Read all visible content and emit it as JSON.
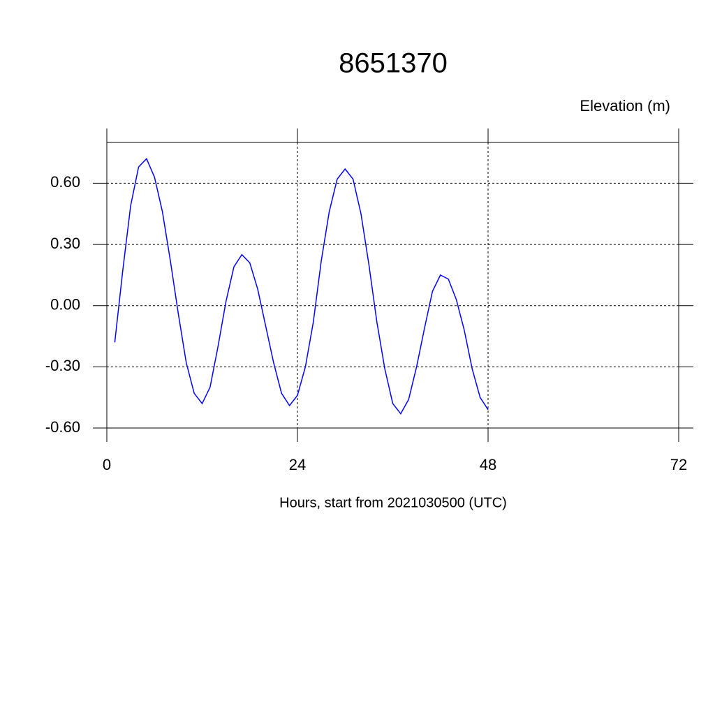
{
  "chart_data": {
    "type": "line",
    "title": "8651370",
    "y_label": "Elevation (m)",
    "x_label": "Hours, start from 2021030500 (UTC)",
    "x": [
      1,
      2,
      3,
      4,
      5,
      6,
      7,
      8,
      9,
      10,
      11,
      12,
      13,
      14,
      15,
      16,
      17,
      18,
      19,
      20,
      21,
      22,
      23,
      24,
      25,
      26,
      27,
      28,
      29,
      30,
      31,
      32,
      33,
      34,
      35,
      36,
      37,
      38,
      39,
      40,
      41,
      42,
      43,
      44,
      45,
      46,
      47,
      48
    ],
    "series": [
      {
        "name": "Elevation",
        "color": "#0000ff",
        "values": [
          -0.18,
          0.17,
          0.49,
          0.68,
          0.72,
          0.63,
          0.46,
          0.22,
          -0.04,
          -0.28,
          -0.43,
          -0.48,
          -0.4,
          -0.2,
          0.02,
          0.19,
          0.25,
          0.21,
          0.08,
          -0.1,
          -0.28,
          -0.43,
          -0.49,
          -0.44,
          -0.3,
          -0.08,
          0.22,
          0.46,
          0.62,
          0.67,
          0.62,
          0.45,
          0.2,
          -0.08,
          -0.31,
          -0.48,
          -0.53,
          -0.46,
          -0.3,
          -0.11,
          0.07,
          0.15,
          0.13,
          0.03,
          -0.12,
          -0.31,
          -0.45,
          -0.51
        ]
      }
    ],
    "xlim": [
      0,
      72
    ],
    "xticks": [
      0,
      24,
      48,
      72
    ],
    "ylim": [
      -0.6,
      0.8
    ],
    "yticks": [
      {
        "value": -0.6,
        "label": "-0.60"
      },
      {
        "value": -0.3,
        "label": "-0.30"
      },
      {
        "value": 0,
        "label": "0.00"
      },
      {
        "value": 0.3,
        "label": "0.30"
      },
      {
        "value": 0.6,
        "label": "0.60"
      }
    ],
    "grid": true
  }
}
